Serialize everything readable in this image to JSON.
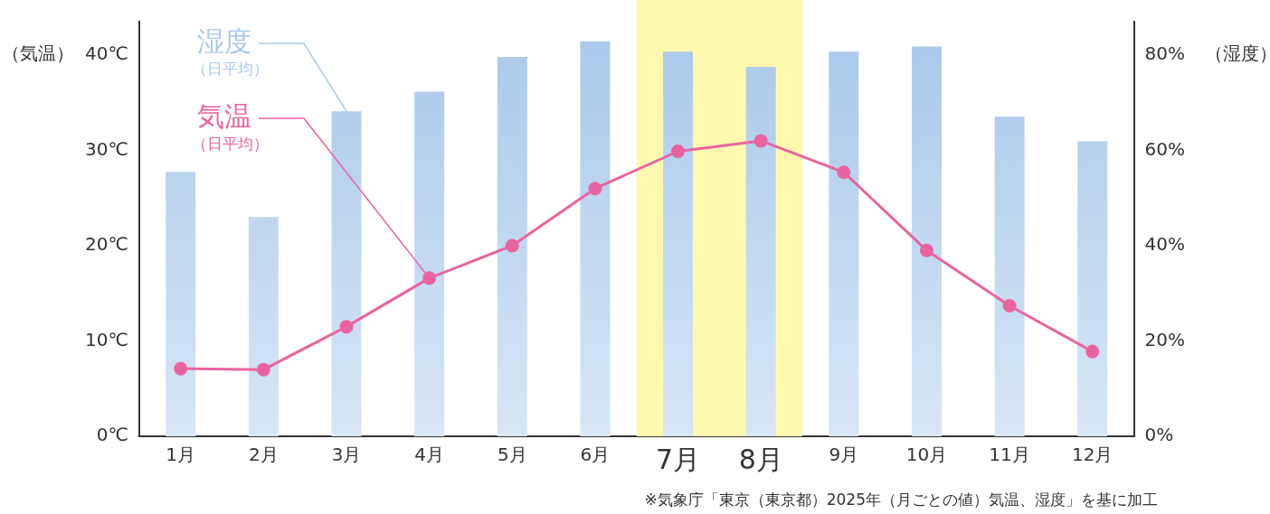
{
  "chart_data": {
    "type": "bar",
    "categories": [
      "1月",
      "2月",
      "3月",
      "4月",
      "5月",
      "6月",
      "7月",
      "8月",
      "9月",
      "10月",
      "11月",
      "12月"
    ],
    "series": [
      {
        "name": "湿度",
        "axis": "y2",
        "color": "#a8c8ea",
        "values": [
          55.5,
          46,
          68.2,
          72.3,
          79.6,
          82.9,
          80.7,
          77.5,
          80.7,
          81.8,
          67.1,
          61.9
        ]
      },
      {
        "name": "気温",
        "type": "line",
        "axis": "y",
        "color": "#e8649f",
        "values": [
          7.1,
          7,
          11.5,
          16.6,
          20,
          26,
          29.9,
          31,
          27.7,
          19.5,
          13.7,
          8.9
        ]
      }
    ],
    "ylabel": "（気温）",
    "y2label": "（湿度）",
    "ylim": [
      0,
      43.5
    ],
    "yticks": [
      {
        "value": 0,
        "label": "0℃"
      },
      {
        "value": 10,
        "label": "10℃"
      },
      {
        "value": 20,
        "label": "20℃"
      },
      {
        "value": 30,
        "label": "30℃"
      },
      {
        "value": 40,
        "label": "40℃"
      }
    ],
    "y2lim": [
      0,
      87
    ],
    "y2ticks": [
      {
        "value": 0,
        "label": "0%"
      },
      {
        "value": 20,
        "label": "20%"
      },
      {
        "value": 40,
        "label": "40%"
      },
      {
        "value": 60,
        "label": "60%"
      },
      {
        "value": 80,
        "label": "80%"
      }
    ],
    "bands": [
      {
        "axis": "x",
        "from": "7月",
        "to": "8月",
        "color": "#fff9b0"
      }
    ],
    "annotations": [
      {
        "text": "（日平均）",
        "x": "3月",
        "y": 34.1
      },
      {
        "text": "（日平均）",
        "x": "4月",
        "y": 16.6
      },
      "※気象庁「東京（東京都）2025年（月ごとの値）気温、湿度」を基に加工"
    ],
    "grid": false,
    "legend": false,
    "marker": "circle",
    "line_style": "solid"
  }
}
